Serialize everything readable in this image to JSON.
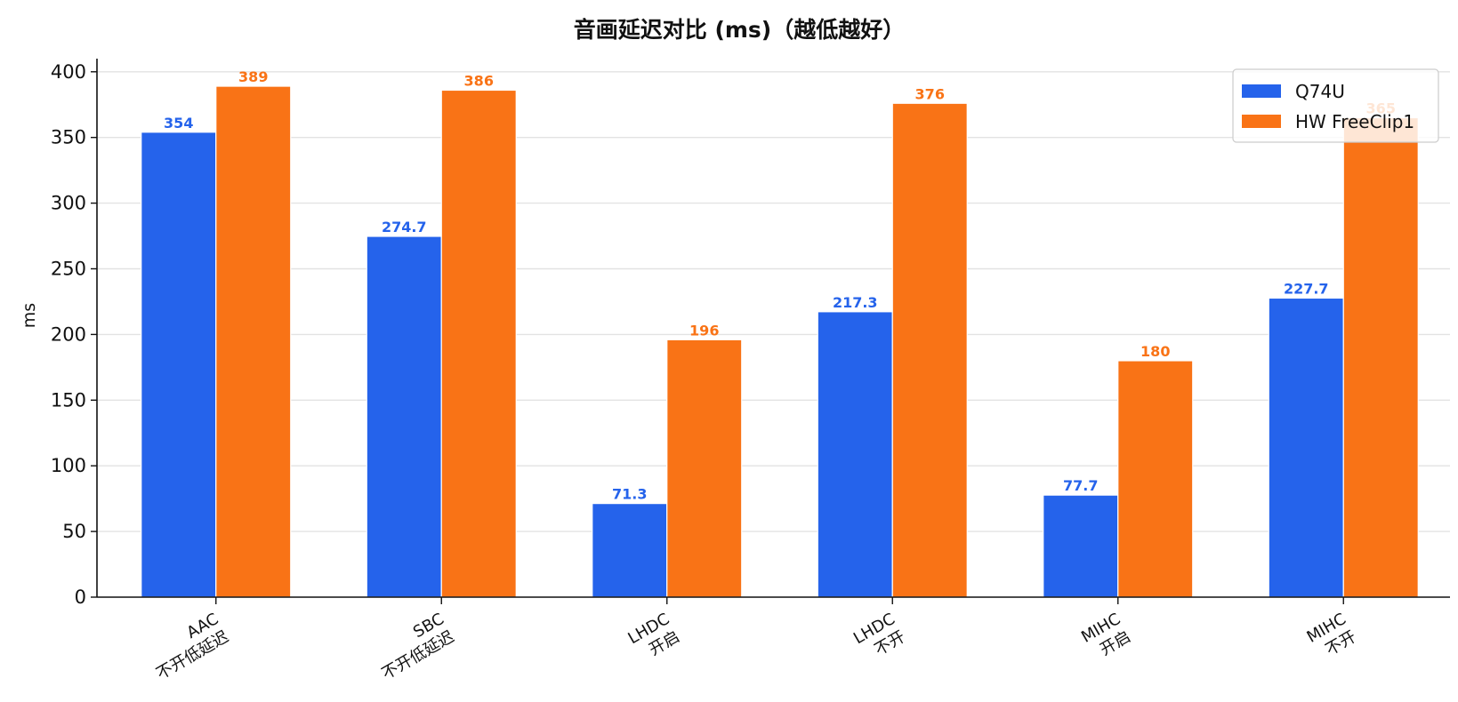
{
  "chart_data": {
    "type": "bar",
    "title": "音画延迟对比 (ms)（越低越好）",
    "xlabel": "",
    "ylabel": "ms",
    "categories": [
      "AAC\n不开低延迟",
      "SBC\n不开低延迟",
      "LHDC\n开启",
      "LHDC\n不开",
      "MIHC\n开启",
      "MIHC\n不开"
    ],
    "series": [
      {
        "name": "Q74U",
        "color": "#2563eb",
        "values": [
          354,
          274.7,
          71.3,
          217.3,
          77.7,
          227.7
        ],
        "labels": [
          "354",
          "274.7",
          "71.3",
          "217.3",
          "77.7",
          "227.7"
        ]
      },
      {
        "name": "HW FreeClip1",
        "color": "#f97316",
        "values": [
          389,
          386,
          196,
          376,
          180,
          365
        ],
        "labels": [
          "389",
          "386",
          "196",
          "376",
          "180",
          "365"
        ]
      }
    ],
    "ylim": [
      0,
      410
    ],
    "yticks": [
      0,
      50,
      100,
      150,
      200,
      250,
      300,
      350,
      400
    ],
    "grid": "horizontal",
    "legend_position": "top-right"
  }
}
